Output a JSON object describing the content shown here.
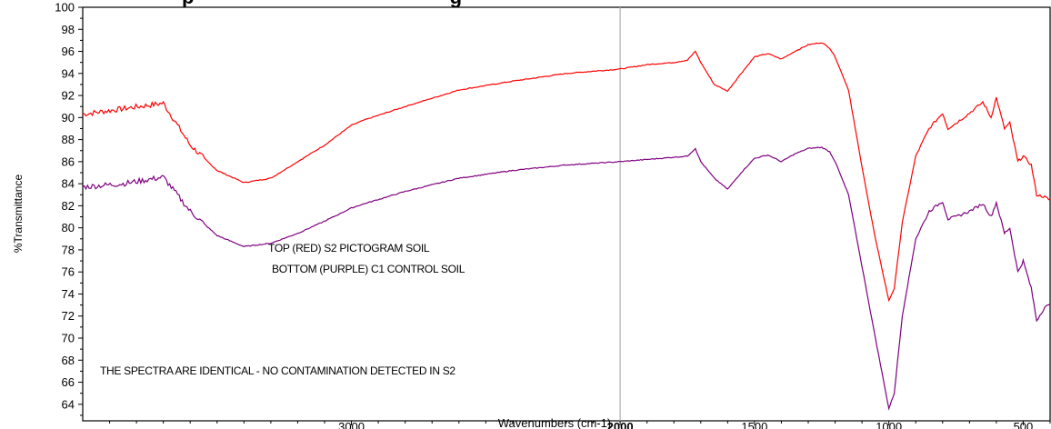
{
  "chart_data": {
    "type": "line",
    "title_partial": "p                                              g",
    "xlabel": "Wavenumbers (cm-1)",
    "ylabel": "%Transmittance",
    "x_reversed": true,
    "xlim": [
      4000,
      400
    ],
    "ylim": [
      62.5,
      100
    ],
    "x_ticks": [
      3000,
      2000,
      1500,
      1000,
      500
    ],
    "x_tick_labels": [
      "3000",
      "2000",
      "1500",
      "1000",
      "500"
    ],
    "y_ticks": [
      64,
      66,
      68,
      70,
      72,
      74,
      76,
      78,
      80,
      82,
      84,
      86,
      88,
      90,
      92,
      94,
      96,
      98,
      100
    ],
    "y_tick_labels": [
      "64",
      "66",
      "68",
      "70",
      "72",
      "74",
      "76",
      "78",
      "80",
      "82",
      "84",
      "86",
      "88",
      "90",
      "92",
      "94",
      "96",
      "98",
      "100"
    ],
    "vertical_marker_x": 2000,
    "grid": false,
    "annotations": [
      "TOP (RED) S2 PICTOGRAM SOIL",
      "BOTTOM (PURPLE) C1 CONTROL SOIL",
      "THE SPECTRA ARE IDENTICAL - NO CONTAMINATION DETECTED IN S2"
    ],
    "series": [
      {
        "color": "#ff0000",
        "x": [
          4000,
          3850,
          3700,
          3600,
          3500,
          3400,
          3300,
          3200,
          3100,
          3000,
          2950,
          2800,
          2600,
          2400,
          2200,
          2000,
          1900,
          1800,
          1750,
          1720,
          1700,
          1650,
          1600,
          1550,
          1500,
          1450,
          1400,
          1350,
          1300,
          1250,
          1220,
          1200,
          1150,
          1100,
          1050,
          1000,
          980,
          950,
          900,
          850,
          800,
          780,
          750,
          700,
          650,
          620,
          600,
          570,
          550,
          520,
          500,
          470,
          450,
          420,
          400
        ],
        "y": [
          90.3,
          90.8,
          91.3,
          87.5,
          85.2,
          84.1,
          84.5,
          86.0,
          87.5,
          89.3,
          89.8,
          91.0,
          92.5,
          93.3,
          94.0,
          94.4,
          94.8,
          95.0,
          95.2,
          96.0,
          95.0,
          93.0,
          92.4,
          94.0,
          95.5,
          95.8,
          95.3,
          96.0,
          96.6,
          96.8,
          96.3,
          95.5,
          92.5,
          85.5,
          79.0,
          73.4,
          74.5,
          80.5,
          86.5,
          89.0,
          90.4,
          89.0,
          89.5,
          90.4,
          91.4,
          90.0,
          91.8,
          89.0,
          89.5,
          86.0,
          86.5,
          85.7,
          83.0,
          82.8,
          82.5
        ]
      },
      {
        "color": "#7f007f",
        "x": [
          4000,
          3850,
          3700,
          3600,
          3500,
          3400,
          3300,
          3200,
          3100,
          3000,
          2950,
          2800,
          2600,
          2400,
          2200,
          2000,
          1900,
          1800,
          1750,
          1720,
          1700,
          1650,
          1600,
          1550,
          1500,
          1450,
          1400,
          1350,
          1300,
          1250,
          1220,
          1200,
          1150,
          1100,
          1050,
          1000,
          980,
          950,
          900,
          850,
          800,
          780,
          750,
          700,
          650,
          620,
          600,
          570,
          550,
          520,
          500,
          470,
          450,
          420,
          400
        ],
        "y": [
          83.7,
          84.0,
          84.6,
          81.5,
          79.3,
          78.3,
          78.6,
          79.5,
          80.6,
          81.8,
          82.2,
          83.3,
          84.5,
          85.2,
          85.7,
          86.0,
          86.2,
          86.4,
          86.5,
          87.2,
          86.0,
          84.5,
          83.5,
          85.0,
          86.3,
          86.6,
          86.0,
          86.7,
          87.2,
          87.3,
          86.9,
          86.0,
          83.0,
          76.5,
          70.0,
          63.6,
          65.0,
          72.0,
          79.0,
          81.5,
          82.4,
          80.8,
          81.0,
          81.5,
          82.2,
          81.0,
          82.3,
          79.5,
          80.0,
          76.0,
          77.0,
          74.5,
          71.6,
          72.8,
          73.0
        ]
      }
    ]
  }
}
